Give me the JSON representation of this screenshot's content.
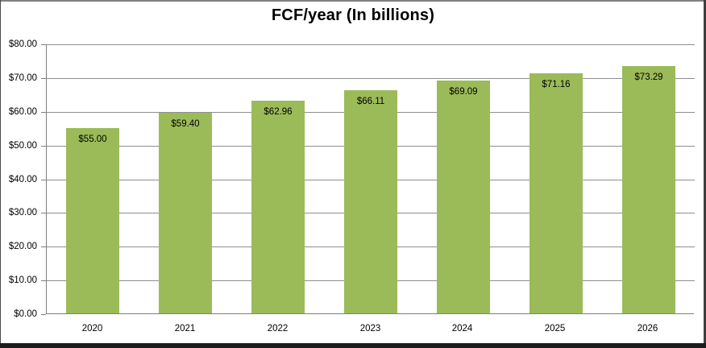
{
  "chart_data": {
    "type": "bar",
    "title": "FCF/year (In billions)",
    "categories": [
      "2020",
      "2021",
      "2022",
      "2023",
      "2024",
      "2025",
      "2026"
    ],
    "values": [
      55.0,
      59.4,
      62.96,
      66.11,
      69.09,
      71.16,
      73.29
    ],
    "data_labels": [
      "$55.00",
      "$59.40",
      "$62.96",
      "$66.11",
      "$69.09",
      "$71.16",
      "$73.29"
    ],
    "xlabel": "",
    "ylabel": "",
    "ylim": [
      0,
      80
    ],
    "ytick_step": 10,
    "ytick_labels": [
      "$0.00",
      "$10.00",
      "$20.00",
      "$30.00",
      "$40.00",
      "$50.00",
      "$60.00",
      "$70.00",
      "$80.00"
    ],
    "grid": true,
    "legend": "none",
    "data_label_position": "inside-end",
    "colors": {
      "bar_fill": "#9bbb59",
      "gridline": "#8e8e8e",
      "axis": "#7f7f7f",
      "text": "#000000",
      "background": "#ffffff"
    }
  }
}
